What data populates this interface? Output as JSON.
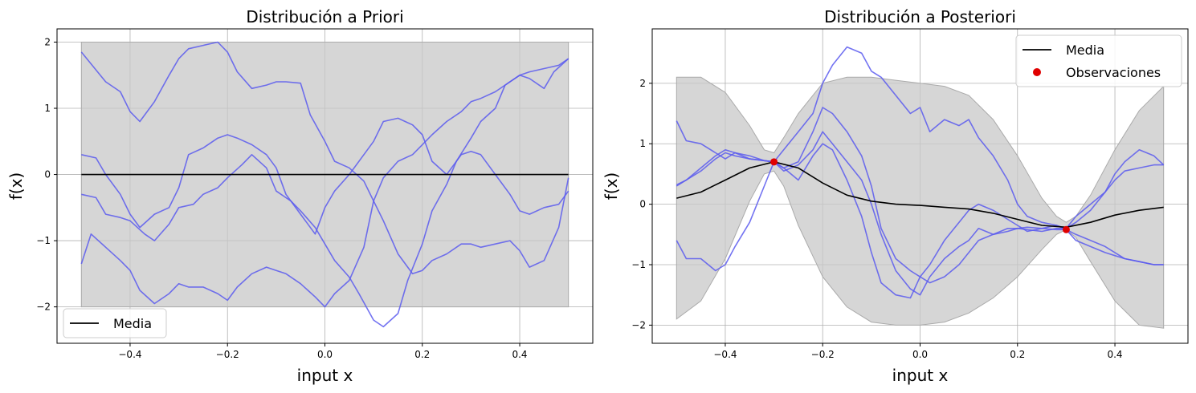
{
  "chart_data": [
    {
      "type": "line",
      "title": "Distribución a Priori",
      "xlabel": "input x",
      "ylabel": "f(x)",
      "xlim": [
        -0.55,
        0.55
      ],
      "ylim": [
        -2.55,
        2.2
      ],
      "xticks": [
        -0.4,
        -0.2,
        0.0,
        0.2,
        0.4
      ],
      "xtick_labels": [
        "−0.4",
        "−0.2",
        "0.0",
        "0.2",
        "0.4"
      ],
      "yticks": [
        -2,
        -1,
        0,
        1,
        2
      ],
      "ytick_labels": [
        "−2",
        "−1",
        "0",
        "1",
        "2"
      ],
      "grid": true,
      "legend_position": "lower-left",
      "legend": [
        "Media"
      ],
      "band": {
        "x": [
          -0.5,
          0.5
        ],
        "lower": [
          -2,
          -2
        ],
        "upper": [
          2,
          2
        ],
        "color": "#c8c8c8"
      },
      "series": [
        {
          "name": "Media",
          "color": "#000000",
          "x": [
            -0.5,
            0.5
          ],
          "y": [
            0,
            0
          ]
        },
        {
          "color": "#5b5bef",
          "x": [
            -0.5,
            -0.45,
            -0.42,
            -0.4,
            -0.38,
            -0.35,
            -0.32,
            -0.3,
            -0.28,
            -0.25,
            -0.22,
            -0.2,
            -0.18,
            -0.15,
            -0.12,
            -0.1,
            -0.08,
            -0.05,
            -0.03,
            0.0,
            0.02,
            0.05,
            0.08,
            0.1,
            0.12,
            0.15,
            0.18,
            0.2,
            0.22,
            0.25,
            0.28,
            0.3,
            0.32,
            0.35,
            0.38,
            0.4,
            0.42,
            0.45,
            0.48,
            0.5
          ],
          "y": [
            1.85,
            1.4,
            1.25,
            0.95,
            0.8,
            1.1,
            1.5,
            1.75,
            1.9,
            1.95,
            2.0,
            1.85,
            1.55,
            1.3,
            1.35,
            1.4,
            1.4,
            1.38,
            0.9,
            0.5,
            0.2,
            0.1,
            -0.1,
            -0.4,
            -0.7,
            -1.2,
            -1.5,
            -1.45,
            -1.3,
            -1.2,
            -1.05,
            -1.05,
            -1.1,
            -1.05,
            -1.0,
            -1.15,
            -1.4,
            -1.3,
            -0.8,
            -0.05
          ]
        },
        {
          "color": "#5b5bef",
          "x": [
            -0.5,
            -0.47,
            -0.45,
            -0.42,
            -0.4,
            -0.38,
            -0.35,
            -0.32,
            -0.3,
            -0.28,
            -0.25,
            -0.22,
            -0.2,
            -0.18,
            -0.15,
            -0.12,
            -0.1,
            -0.08,
            -0.05,
            -0.02,
            0.0,
            0.02,
            0.05,
            0.08,
            0.1,
            0.12,
            0.15,
            0.18,
            0.2,
            0.22,
            0.25,
            0.28,
            0.3,
            0.32,
            0.35,
            0.38,
            0.4,
            0.42,
            0.45,
            0.48,
            0.5
          ],
          "y": [
            0.3,
            0.25,
            0.0,
            -0.3,
            -0.6,
            -0.8,
            -0.6,
            -0.5,
            -0.2,
            0.3,
            0.4,
            0.55,
            0.6,
            0.55,
            0.45,
            0.3,
            0.1,
            -0.3,
            -0.6,
            -0.9,
            -0.5,
            -0.25,
            0.0,
            0.3,
            0.5,
            0.8,
            0.85,
            0.75,
            0.6,
            0.2,
            0.0,
            0.3,
            0.35,
            0.3,
            0.0,
            -0.3,
            -0.55,
            -0.6,
            -0.5,
            -0.45,
            -0.25
          ]
        },
        {
          "color": "#5b5bef",
          "x": [
            -0.5,
            -0.47,
            -0.45,
            -0.42,
            -0.4,
            -0.37,
            -0.35,
            -0.32,
            -0.3,
            -0.27,
            -0.25,
            -0.22,
            -0.2,
            -0.17,
            -0.15,
            -0.12,
            -0.1,
            -0.07,
            -0.05,
            -0.02,
            0.0,
            0.02,
            0.05,
            0.07,
            0.1,
            0.12,
            0.15,
            0.17,
            0.2,
            0.22,
            0.25,
            0.27,
            0.3,
            0.32,
            0.35,
            0.37,
            0.4,
            0.42,
            0.45,
            0.47,
            0.5
          ],
          "y": [
            -0.3,
            -0.35,
            -0.6,
            -0.65,
            -0.7,
            -0.9,
            -1.0,
            -0.75,
            -0.5,
            -0.45,
            -0.3,
            -0.2,
            -0.05,
            0.15,
            0.3,
            0.1,
            -0.25,
            -0.4,
            -0.55,
            -0.8,
            -1.05,
            -1.3,
            -1.55,
            -1.8,
            -2.2,
            -2.3,
            -2.1,
            -1.6,
            -1.05,
            -0.55,
            -0.15,
            0.2,
            0.55,
            0.8,
            1.0,
            1.35,
            1.5,
            1.45,
            1.3,
            1.55,
            1.75
          ]
        },
        {
          "color": "#5b5bef",
          "x": [
            -0.5,
            -0.48,
            -0.45,
            -0.42,
            -0.4,
            -0.38,
            -0.35,
            -0.32,
            -0.3,
            -0.28,
            -0.25,
            -0.22,
            -0.2,
            -0.18,
            -0.15,
            -0.12,
            -0.1,
            -0.08,
            -0.05,
            -0.02,
            0.0,
            0.02,
            0.05,
            0.08,
            0.1,
            0.12,
            0.15,
            0.18,
            0.2,
            0.22,
            0.25,
            0.28,
            0.3,
            0.32,
            0.35,
            0.38,
            0.4,
            0.42,
            0.45,
            0.48,
            0.5
          ],
          "y": [
            -1.35,
            -0.9,
            -1.1,
            -1.3,
            -1.45,
            -1.75,
            -1.95,
            -1.8,
            -1.65,
            -1.7,
            -1.7,
            -1.8,
            -1.9,
            -1.7,
            -1.5,
            -1.4,
            -1.45,
            -1.5,
            -1.65,
            -1.85,
            -2.0,
            -1.8,
            -1.6,
            -1.1,
            -0.4,
            -0.05,
            0.2,
            0.3,
            0.45,
            0.6,
            0.8,
            0.95,
            1.1,
            1.15,
            1.25,
            1.4,
            1.5,
            1.55,
            1.6,
            1.65,
            1.75
          ]
        }
      ]
    },
    {
      "type": "line",
      "title": "Distribución a Posteriori",
      "xlabel": "input x",
      "ylabel": "f(x)",
      "xlim": [
        -0.55,
        0.55
      ],
      "ylim": [
        -2.3,
        2.9
      ],
      "xticks": [
        -0.4,
        -0.2,
        0.0,
        0.2,
        0.4
      ],
      "xtick_labels": [
        "−0.4",
        "−0.2",
        "0.0",
        "0.2",
        "0.4"
      ],
      "yticks": [
        -2,
        -1,
        0,
        1,
        2
      ],
      "ytick_labels": [
        "−2",
        "−1",
        "0",
        "1",
        "2"
      ],
      "grid": true,
      "legend_position": "top-right",
      "legend": [
        "Media",
        "Observaciones"
      ],
      "observations": {
        "name": "Observaciones",
        "color": "#e00000",
        "x": [
          -0.3,
          0.3
        ],
        "y": [
          0.7,
          -0.42
        ]
      },
      "band": {
        "color": "#c8c8c8",
        "x": [
          -0.5,
          -0.45,
          -0.4,
          -0.35,
          -0.32,
          -0.3,
          -0.28,
          -0.25,
          -0.2,
          -0.15,
          -0.1,
          -0.05,
          0.0,
          0.05,
          0.1,
          0.15,
          0.2,
          0.25,
          0.28,
          0.3,
          0.32,
          0.35,
          0.4,
          0.45,
          0.5
        ],
        "lower": [
          -1.9,
          -1.6,
          -0.9,
          0.05,
          0.5,
          0.55,
          0.3,
          -0.35,
          -1.2,
          -1.7,
          -1.95,
          -2.0,
          -2.0,
          -1.95,
          -1.8,
          -1.55,
          -1.2,
          -0.75,
          -0.5,
          -0.42,
          -0.55,
          -0.95,
          -1.6,
          -2.0,
          -2.05
        ],
        "upper": [
          2.1,
          2.1,
          1.85,
          1.3,
          0.9,
          0.85,
          1.1,
          1.5,
          2.0,
          2.1,
          2.1,
          2.05,
          2.0,
          1.95,
          1.8,
          1.4,
          0.8,
          0.1,
          -0.2,
          -0.3,
          -0.2,
          0.15,
          0.9,
          1.55,
          1.95
        ]
      },
      "series": [
        {
          "name": "Media",
          "color": "#000000",
          "x": [
            -0.5,
            -0.45,
            -0.4,
            -0.35,
            -0.3,
            -0.25,
            -0.2,
            -0.15,
            -0.1,
            -0.05,
            0.0,
            0.05,
            0.1,
            0.15,
            0.2,
            0.25,
            0.3,
            0.35,
            0.4,
            0.45,
            0.5
          ],
          "y": [
            0.1,
            0.2,
            0.4,
            0.6,
            0.7,
            0.6,
            0.35,
            0.15,
            0.05,
            0.0,
            -0.02,
            -0.05,
            -0.08,
            -0.15,
            -0.25,
            -0.35,
            -0.38,
            -0.3,
            -0.18,
            -0.1,
            -0.05
          ]
        },
        {
          "color": "#5b5bef",
          "x": [
            -0.5,
            -0.48,
            -0.45,
            -0.42,
            -0.4,
            -0.38,
            -0.35,
            -0.32,
            -0.3,
            -0.28,
            -0.25,
            -0.22,
            -0.2,
            -0.18,
            -0.15,
            -0.12,
            -0.1,
            -0.08,
            -0.05,
            -0.02,
            0.0,
            0.02,
            0.05,
            0.08,
            0.1,
            0.12,
            0.15,
            0.18,
            0.2,
            0.22,
            0.25,
            0.28,
            0.3,
            0.32,
            0.35,
            0.38,
            0.4,
            0.42,
            0.45,
            0.48,
            0.5
          ],
          "y": [
            1.38,
            1.05,
            1.0,
            0.85,
            0.75,
            0.85,
            0.8,
            0.72,
            0.7,
            0.9,
            1.2,
            1.5,
            2.0,
            2.3,
            2.6,
            2.5,
            2.2,
            2.1,
            1.8,
            1.5,
            1.6,
            1.2,
            1.4,
            1.3,
            1.4,
            1.1,
            0.8,
            0.4,
            0.0,
            -0.2,
            -0.3,
            -0.35,
            -0.42,
            -0.6,
            -0.7,
            -0.8,
            -0.85,
            -0.9,
            -0.95,
            -1.0,
            -1.0
          ]
        },
        {
          "color": "#5b5bef",
          "x": [
            -0.5,
            -0.48,
            -0.45,
            -0.42,
            -0.4,
            -0.38,
            -0.35,
            -0.32,
            -0.3,
            -0.28,
            -0.25,
            -0.22,
            -0.2,
            -0.18,
            -0.15,
            -0.12,
            -0.1,
            -0.08,
            -0.05,
            -0.02,
            0.0,
            0.02,
            0.05,
            0.08,
            0.1,
            0.12,
            0.15,
            0.18,
            0.2,
            0.22,
            0.25,
            0.28,
            0.3,
            0.32,
            0.35,
            0.38,
            0.4,
            0.42,
            0.45,
            0.48,
            0.5
          ],
          "y": [
            0.3,
            0.4,
            0.55,
            0.75,
            0.85,
            0.8,
            0.75,
            0.72,
            0.7,
            0.6,
            0.7,
            1.2,
            1.6,
            1.5,
            1.2,
            0.8,
            0.3,
            -0.4,
            -0.9,
            -1.1,
            -1.2,
            -1.0,
            -0.6,
            -0.3,
            -0.1,
            0.0,
            -0.1,
            -0.25,
            -0.35,
            -0.45,
            -0.4,
            -0.35,
            -0.4,
            -0.3,
            -0.1,
            0.2,
            0.5,
            0.7,
            0.9,
            0.8,
            0.65
          ]
        },
        {
          "color": "#5b5bef",
          "x": [
            -0.5,
            -0.48,
            -0.45,
            -0.42,
            -0.4,
            -0.38,
            -0.35,
            -0.32,
            -0.3,
            -0.28,
            -0.25,
            -0.22,
            -0.2,
            -0.18,
            -0.15,
            -0.12,
            -0.1,
            -0.08,
            -0.05,
            -0.02,
            0.0,
            0.02,
            0.05,
            0.08,
            0.1,
            0.12,
            0.15,
            0.18,
            0.2,
            0.22,
            0.25,
            0.28,
            0.3,
            0.32,
            0.35,
            0.38,
            0.4,
            0.42,
            0.45,
            0.48,
            0.5
          ],
          "y": [
            0.32,
            0.4,
            0.6,
            0.8,
            0.9,
            0.85,
            0.75,
            0.72,
            0.7,
            0.55,
            0.65,
            0.9,
            1.2,
            1.0,
            0.7,
            0.4,
            0.0,
            -0.5,
            -1.1,
            -1.4,
            -1.5,
            -1.2,
            -0.9,
            -0.7,
            -0.6,
            -0.4,
            -0.5,
            -0.45,
            -0.4,
            -0.42,
            -0.45,
            -0.4,
            -0.4,
            -0.2,
            0.0,
            0.2,
            0.4,
            0.55,
            0.6,
            0.65,
            0.65
          ]
        },
        {
          "color": "#5b5bef",
          "x": [
            -0.5,
            -0.48,
            -0.45,
            -0.42,
            -0.4,
            -0.38,
            -0.35,
            -0.32,
            -0.3,
            -0.28,
            -0.25,
            -0.22,
            -0.2,
            -0.18,
            -0.15,
            -0.12,
            -0.1,
            -0.08,
            -0.05,
            -0.02,
            0.0,
            0.02,
            0.05,
            0.08,
            0.1,
            0.12,
            0.15,
            0.18,
            0.2,
            0.22,
            0.25,
            0.28,
            0.3,
            0.32,
            0.35,
            0.38,
            0.4,
            0.42,
            0.45,
            0.48,
            0.5
          ],
          "y": [
            -0.6,
            -0.9,
            -0.9,
            -1.1,
            -1.0,
            -0.7,
            -0.3,
            0.3,
            0.7,
            0.6,
            0.4,
            0.8,
            1.0,
            0.9,
            0.4,
            -0.2,
            -0.8,
            -1.3,
            -1.5,
            -1.55,
            -1.2,
            -1.3,
            -1.2,
            -1.0,
            -0.8,
            -0.6,
            -0.5,
            -0.4,
            -0.4,
            -0.38,
            -0.4,
            -0.42,
            -0.42,
            -0.5,
            -0.6,
            -0.7,
            -0.8,
            -0.9,
            -0.95,
            -1.0,
            -1.0
          ]
        }
      ]
    }
  ]
}
